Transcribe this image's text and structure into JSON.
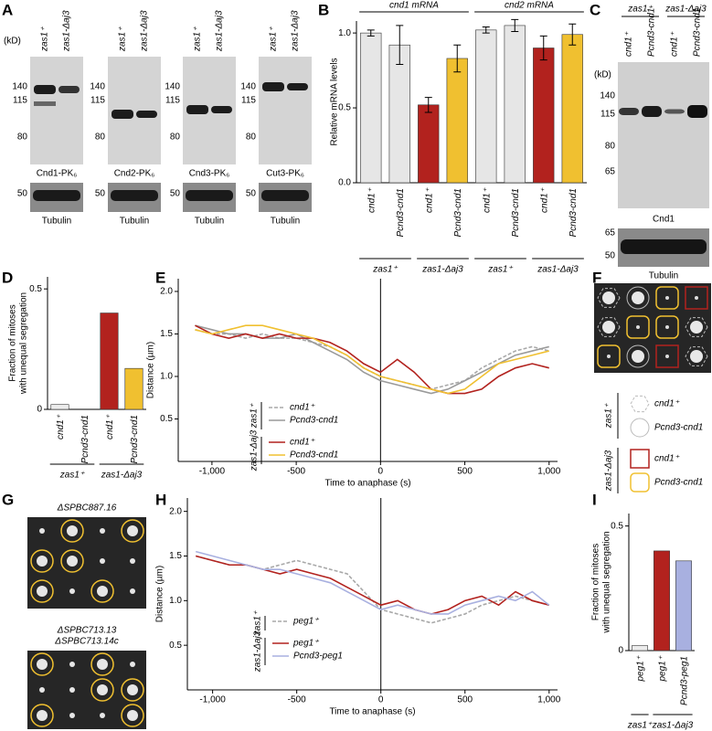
{
  "panels": [
    "A",
    "B",
    "C",
    "D",
    "E",
    "F",
    "G",
    "H",
    "I"
  ],
  "panel_a": {
    "unit": "(kD)",
    "strains": [
      "zas1⁺",
      "zas1-Δaj3"
    ],
    "blots": [
      {
        "caption": "Cnd1-PK₆",
        "markers": [
          "140",
          "115",
          "80"
        ],
        "loading_marker": "50",
        "loading_caption": "Tubulin"
      },
      {
        "caption": "Cnd2-PK₆",
        "markers": [
          "140",
          "115",
          "80"
        ],
        "loading_marker": "50",
        "loading_caption": "Tubulin"
      },
      {
        "caption": "Cnd3-PK₆",
        "markers": [
          "140",
          "115",
          "80"
        ],
        "loading_marker": "50",
        "loading_caption": "Tubulin"
      },
      {
        "caption": "Cut3-PK₆",
        "markers": [
          "140",
          "115",
          "80"
        ],
        "loading_marker": "50",
        "loading_caption": "Tubulin"
      }
    ]
  },
  "panel_c": {
    "unit": "(kD)",
    "strains": [
      "zas1⁺",
      "zas1-Δaj3"
    ],
    "lanes": [
      "cnd1⁺",
      "Pcnd3-cnd1",
      "cnd1⁺",
      "Pcnd3-cnd1"
    ],
    "markers": [
      "140",
      "115",
      "80",
      "65"
    ],
    "caption": "Cnd1",
    "loading_markers": [
      "65",
      "50"
    ],
    "loading_caption": "Tubulin"
  },
  "panel_f": {
    "groups": [
      {
        "label": "zas1⁺",
        "items": [
          "cnd1⁺",
          "Pcnd3-cnd1"
        ]
      },
      {
        "label": "zas1-Δaj3",
        "items": [
          "cnd1⁺",
          "Pcnd3-cnd1"
        ]
      }
    ]
  },
  "panel_g": {
    "titles": [
      "ΔSPBC887.16",
      "ΔSPBC713.13",
      "ΔSPBC713.14c"
    ]
  },
  "chart_data": [
    {
      "type": "bar",
      "ylabel": "Relative mRNA levels",
      "headers": [
        "cnd1 mRNA",
        "cnd2 mRNA"
      ],
      "categories": [
        "cnd1⁺",
        "Pcnd3-cnd1",
        "cnd1⁺",
        "Pcnd3-cnd1",
        "cnd1⁺",
        "Pcnd3-cnd1",
        "cnd1⁺",
        "Pcnd3-cnd1"
      ],
      "values": [
        1.0,
        0.92,
        0.52,
        0.83,
        1.02,
        1.05,
        0.9,
        0.99
      ],
      "errors": [
        0.02,
        0.13,
        0.05,
        0.09,
        0.02,
        0.04,
        0.08,
        0.07
      ],
      "colors": [
        "#e6e6e6",
        "#e6e6e6",
        "#b2221e",
        "#f0c030",
        "#e6e6e6",
        "#e6e6e6",
        "#b2221e",
        "#f0c030"
      ],
      "strains": [
        "zas1⁺",
        "zas1-Δaj3",
        "zas1⁺",
        "zas1-Δaj3"
      ],
      "ylim": [
        0,
        1.08
      ],
      "yticks": [
        {
          "value": 0,
          "label": "0.0"
        },
        0.5,
        {
          "value": 1,
          "label": "1.0"
        }
      ]
    },
    {
      "type": "bar",
      "ylabel": [
        "Fraction of mitoses",
        "with unequal segregation"
      ],
      "categories": [
        "cnd1⁺",
        "Pcnd3-cnd1",
        "cnd1⁺",
        "Pcnd3-cnd1"
      ],
      "values": [
        0.02,
        0,
        0.4,
        0.17
      ],
      "colors": [
        "#ececec",
        "#ececec",
        "#b2221e",
        "#f0c030"
      ],
      "strains": [
        "zas1⁺",
        "zas1-Δaj3"
      ],
      "ylim": [
        0,
        0.55
      ],
      "yticks": [
        0,
        0.5
      ]
    },
    {
      "type": "line",
      "xlabel": "Time to anaphase (s)",
      "ylabel": "Distance (µm)",
      "x": [
        -1100,
        -1000,
        -900,
        -800,
        -700,
        -600,
        -500,
        -400,
        -300,
        -200,
        -100,
        0,
        100,
        200,
        300,
        400,
        500,
        600,
        700,
        800,
        900,
        1000
      ],
      "series": [
        {
          "name": "cnd1⁺",
          "group": "zas1⁺",
          "color": "#a8a8a8",
          "dashed": true,
          "values": [
            1.55,
            1.5,
            1.5,
            1.45,
            1.5,
            1.45,
            1.45,
            1.4,
            1.35,
            1.25,
            1.1,
            1.0,
            0.95,
            0.9,
            0.85,
            0.9,
            0.95,
            1.1,
            1.2,
            1.3,
            1.35,
            1.3
          ]
        },
        {
          "name": "Pcnd3-cnd1",
          "group": "zas1⁺",
          "color": "#9a9a9a",
          "dashed": false,
          "values": [
            1.6,
            1.55,
            1.5,
            1.5,
            1.45,
            1.45,
            1.5,
            1.4,
            1.3,
            1.2,
            1.05,
            0.95,
            0.9,
            0.85,
            0.8,
            0.85,
            0.95,
            1.05,
            1.15,
            1.25,
            1.3,
            1.35
          ]
        },
        {
          "name": "cnd1⁺",
          "group": "zas1-Δaj3",
          "color": "#b2221e",
          "dashed": false,
          "values": [
            1.6,
            1.5,
            1.45,
            1.5,
            1.45,
            1.5,
            1.45,
            1.45,
            1.4,
            1.3,
            1.15,
            1.05,
            1.2,
            1.05,
            0.85,
            0.8,
            0.8,
            0.85,
            1.0,
            1.1,
            1.15,
            1.1
          ]
        },
        {
          "name": "Pcnd3-cnd1",
          "group": "zas1-Δaj3",
          "color": "#f0c030",
          "dashed": false,
          "values": [
            1.55,
            1.5,
            1.55,
            1.6,
            1.6,
            1.55,
            1.5,
            1.45,
            1.35,
            1.25,
            1.1,
            1.0,
            0.95,
            0.9,
            0.85,
            0.8,
            0.85,
            1.0,
            1.15,
            1.2,
            1.25,
            1.3
          ]
        }
      ],
      "xlim": [
        -1200,
        1050
      ],
      "xticks": [
        {
          "value": -1000,
          "label": "-1,000"
        },
        -500,
        0,
        500,
        {
          "value": 1000,
          "label": "1,000"
        }
      ],
      "ylim": [
        0,
        2.15
      ],
      "yticks": [
        0.5,
        {
          "value": 1,
          "label": "1.0"
        },
        1.5,
        {
          "value": 2,
          "label": "2.0"
        }
      ]
    },
    {
      "type": "line",
      "xlabel": "Time to anaphase (s)",
      "ylabel": "Distance (µm)",
      "x": [
        -1100,
        -1000,
        -900,
        -800,
        -700,
        -600,
        -500,
        -400,
        -300,
        -200,
        -100,
        0,
        100,
        200,
        300,
        400,
        500,
        600,
        700,
        800,
        900,
        1000
      ],
      "series": [
        {
          "name": "peg1⁺",
          "group": "zas1⁺",
          "color": "#a8a8a8",
          "dashed": true,
          "values": [
            1.5,
            1.45,
            1.4,
            1.4,
            1.35,
            1.4,
            1.45,
            1.4,
            1.35,
            1.3,
            1.1,
            0.9,
            0.85,
            0.8,
            0.75,
            0.8,
            0.85,
            0.95,
            1.0,
            1.05,
            1.0,
            0.95
          ]
        },
        {
          "name": "peg1⁺",
          "group": "zas1-Δaj3",
          "color": "#b2221e",
          "dashed": false,
          "values": [
            1.5,
            1.45,
            1.4,
            1.4,
            1.35,
            1.3,
            1.35,
            1.3,
            1.25,
            1.15,
            1.05,
            0.95,
            1.0,
            0.9,
            0.85,
            0.9,
            1.0,
            1.05,
            0.95,
            1.1,
            1.0,
            0.95
          ]
        },
        {
          "name": "Pcnd3-peg1",
          "group": "zas1-Δaj3",
          "color": "#a8b0e0",
          "dashed": false,
          "values": [
            1.55,
            1.5,
            1.45,
            1.4,
            1.35,
            1.35,
            1.3,
            1.25,
            1.2,
            1.1,
            1.0,
            0.9,
            0.95,
            0.9,
            0.85,
            0.85,
            0.95,
            1.0,
            1.05,
            1.0,
            1.1,
            0.95
          ]
        }
      ],
      "xlim": [
        -1150,
        1050
      ],
      "xticks": [
        {
          "value": -1000,
          "label": "-1,000"
        },
        -500,
        0,
        500,
        {
          "value": 1000,
          "label": "1,000"
        }
      ],
      "ylim": [
        0,
        2.15
      ],
      "yticks": [
        0.5,
        {
          "value": 1,
          "label": "1.0"
        },
        1.5,
        {
          "value": 2,
          "label": "2.0"
        }
      ]
    },
    {
      "type": "bar",
      "ylabel": [
        "Fraction of mitoses",
        "with unequal segregation"
      ],
      "categories": [
        "peg1⁺",
        "peg1⁺",
        "Pcnd3-peg1"
      ],
      "values": [
        0.02,
        0.4,
        0.36
      ],
      "colors": [
        "#ececec",
        "#b2221e",
        "#a8b0e0"
      ],
      "strains": [
        "zas1⁺",
        "zas1-Δaj3"
      ],
      "ylim": [
        0,
        0.55
      ],
      "yticks": [
        0,
        0.5
      ]
    }
  ]
}
